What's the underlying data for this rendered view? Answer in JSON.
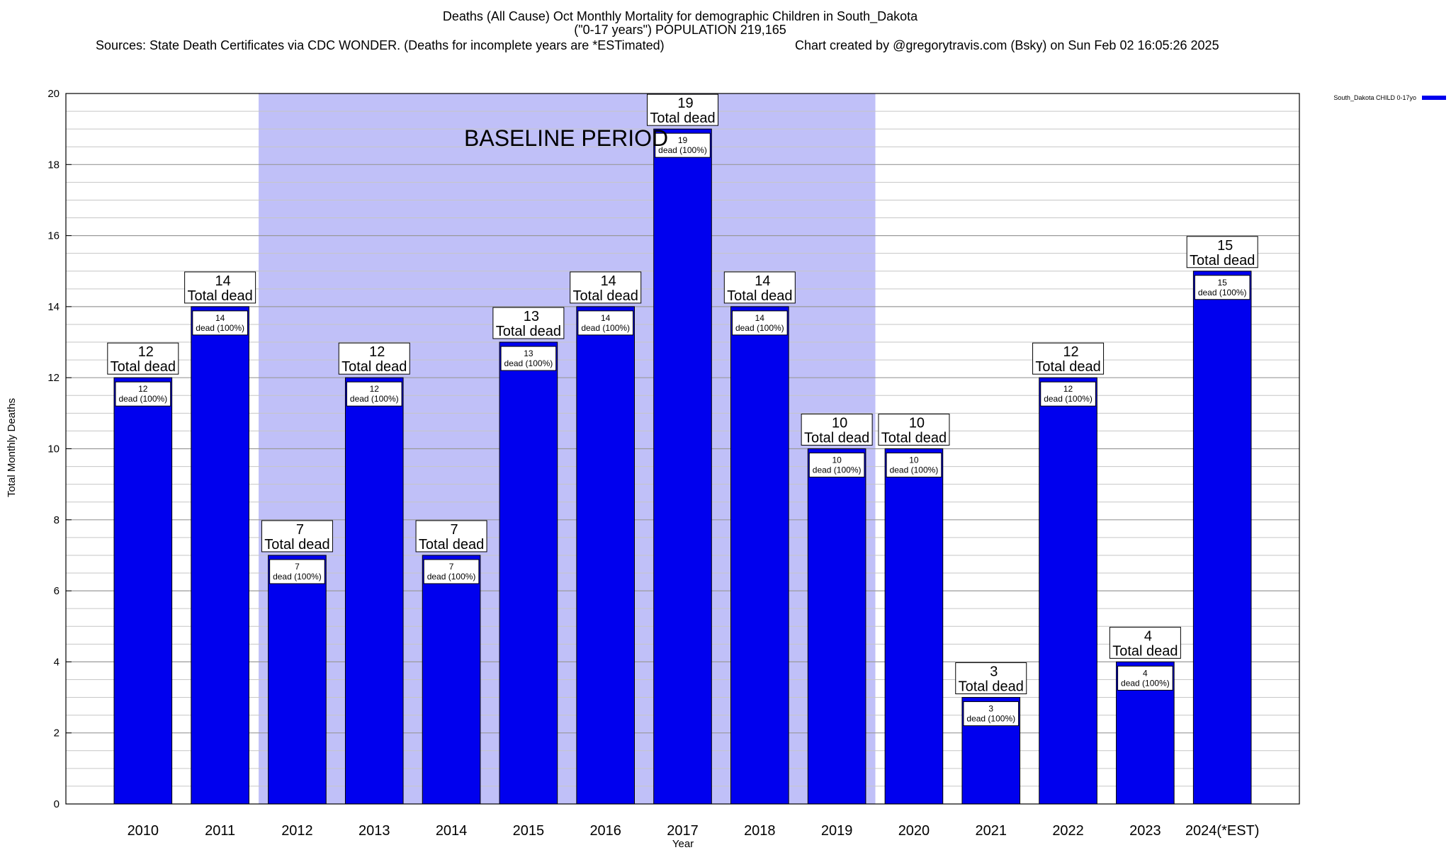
{
  "titles": {
    "line1": "Deaths (All Cause) Oct Monthly Mortality for demographic Children in South_Dakota",
    "line2": "(\"0-17 years\") POPULATION 219,165",
    "sources": "Sources: State Death Certificates via CDC WONDER. (Deaths for incomplete years are *ESTimated)",
    "credit": "Chart created by @gregorytravis.com (Bsky) on Sun Feb 02 16:05:26 2025"
  },
  "chart_data": {
    "type": "bar",
    "xlabel": "Year",
    "ylabel": "Total Monthly Deaths",
    "ylim": [
      0,
      20
    ],
    "y_ticks": [
      0,
      2,
      4,
      6,
      8,
      10,
      12,
      14,
      16,
      18,
      20
    ],
    "grid": true,
    "legend_position": "top-right",
    "categories": [
      "2010",
      "2011",
      "2012",
      "2013",
      "2014",
      "2015",
      "2016",
      "2017",
      "2018",
      "2019",
      "2020",
      "2021",
      "2022",
      "2023",
      "2024(*EST)"
    ],
    "series": [
      {
        "name": "South_Dakota CHILD 0-17yo",
        "color": "#0000ee",
        "values": [
          12,
          14,
          7,
          12,
          7,
          13,
          14,
          19,
          14,
          10,
          10,
          3,
          12,
          4,
          15
        ]
      }
    ],
    "total_label_text": "Total dead",
    "inner_label_text": "dead (100%)",
    "baseline": {
      "label": "BASELINE PERIOD",
      "start": "2012",
      "end": "2019",
      "color": "#c0c0f8"
    }
  }
}
